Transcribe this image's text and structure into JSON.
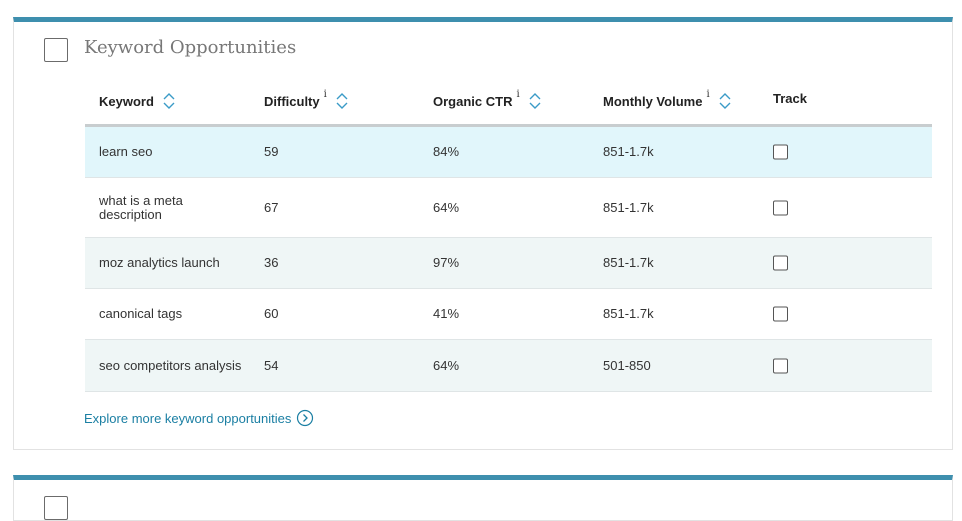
{
  "header": {
    "title": "Keyword Opportunities"
  },
  "table": {
    "columns": [
      {
        "label": "Keyword",
        "sortable": true
      },
      {
        "label": "Difficulty",
        "info": "i",
        "sortable": true
      },
      {
        "label": "Organic CTR",
        "info": "i",
        "sortable": true
      },
      {
        "label": "Monthly Volume",
        "info": "i",
        "sortable": true
      },
      {
        "label": "Track",
        "sortable": false
      }
    ],
    "rows": [
      [
        "learn seo",
        "59",
        "84%",
        "851-1.7k"
      ],
      [
        "what is a meta description",
        "67",
        "64%",
        "851-1.7k"
      ],
      [
        "moz analytics launch",
        "36",
        "97%",
        "851-1.7k"
      ],
      [
        "canonical tags",
        "60",
        "41%",
        "851-1.7k"
      ],
      [
        "seo competitors analysis",
        "54",
        "64%",
        "501-850"
      ]
    ]
  },
  "link": {
    "label": "Explore more keyword opportunities"
  }
}
